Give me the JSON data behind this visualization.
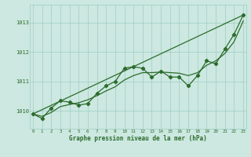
{
  "background_color": "#cce8e0",
  "grid_color": "#9ecec4",
  "line_color": "#2d6b2d",
  "x_labels": [
    "0",
    "1",
    "2",
    "3",
    "4",
    "5",
    "6",
    "7",
    "8",
    "9",
    "10",
    "11",
    "12",
    "13",
    "14",
    "15",
    "16",
    "17",
    "18",
    "19",
    "20",
    "21",
    "22",
    "23"
  ],
  "xlabel": "Graphe pression niveau de la mer (hPa)",
  "yticks": [
    1010,
    1011,
    1012,
    1013
  ],
  "ylim": [
    1009.4,
    1013.6
  ],
  "xlim": [
    -0.3,
    23.3
  ],
  "main_x": [
    0,
    1,
    2,
    3,
    4,
    5,
    6,
    7,
    8,
    9,
    10,
    11,
    12,
    13,
    14,
    15,
    16,
    17,
    18,
    19,
    20,
    21,
    22,
    23
  ],
  "main_y": [
    1009.9,
    1009.75,
    1010.1,
    1010.35,
    1010.3,
    1010.2,
    1010.25,
    1010.6,
    1010.85,
    1011.0,
    1011.45,
    1011.5,
    1011.45,
    1011.15,
    1011.35,
    1011.15,
    1011.15,
    1010.85,
    1011.2,
    1011.7,
    1011.6,
    1012.1,
    1012.6,
    1013.25
  ],
  "smooth_x": [
    0,
    1,
    2,
    3,
    4,
    5,
    6,
    7,
    8,
    9,
    10,
    11,
    12,
    13,
    14,
    15,
    16,
    17,
    18,
    19,
    20,
    21,
    22,
    23
  ],
  "smooth_y": [
    1009.9,
    1009.82,
    1009.95,
    1010.15,
    1010.22,
    1010.28,
    1010.38,
    1010.52,
    1010.68,
    1010.82,
    1011.05,
    1011.2,
    1011.3,
    1011.3,
    1011.32,
    1011.3,
    1011.28,
    1011.2,
    1011.3,
    1011.55,
    1011.7,
    1011.95,
    1012.35,
    1013.05
  ],
  "trend_x": [
    0,
    23
  ],
  "trend_y": [
    1009.9,
    1013.25
  ]
}
